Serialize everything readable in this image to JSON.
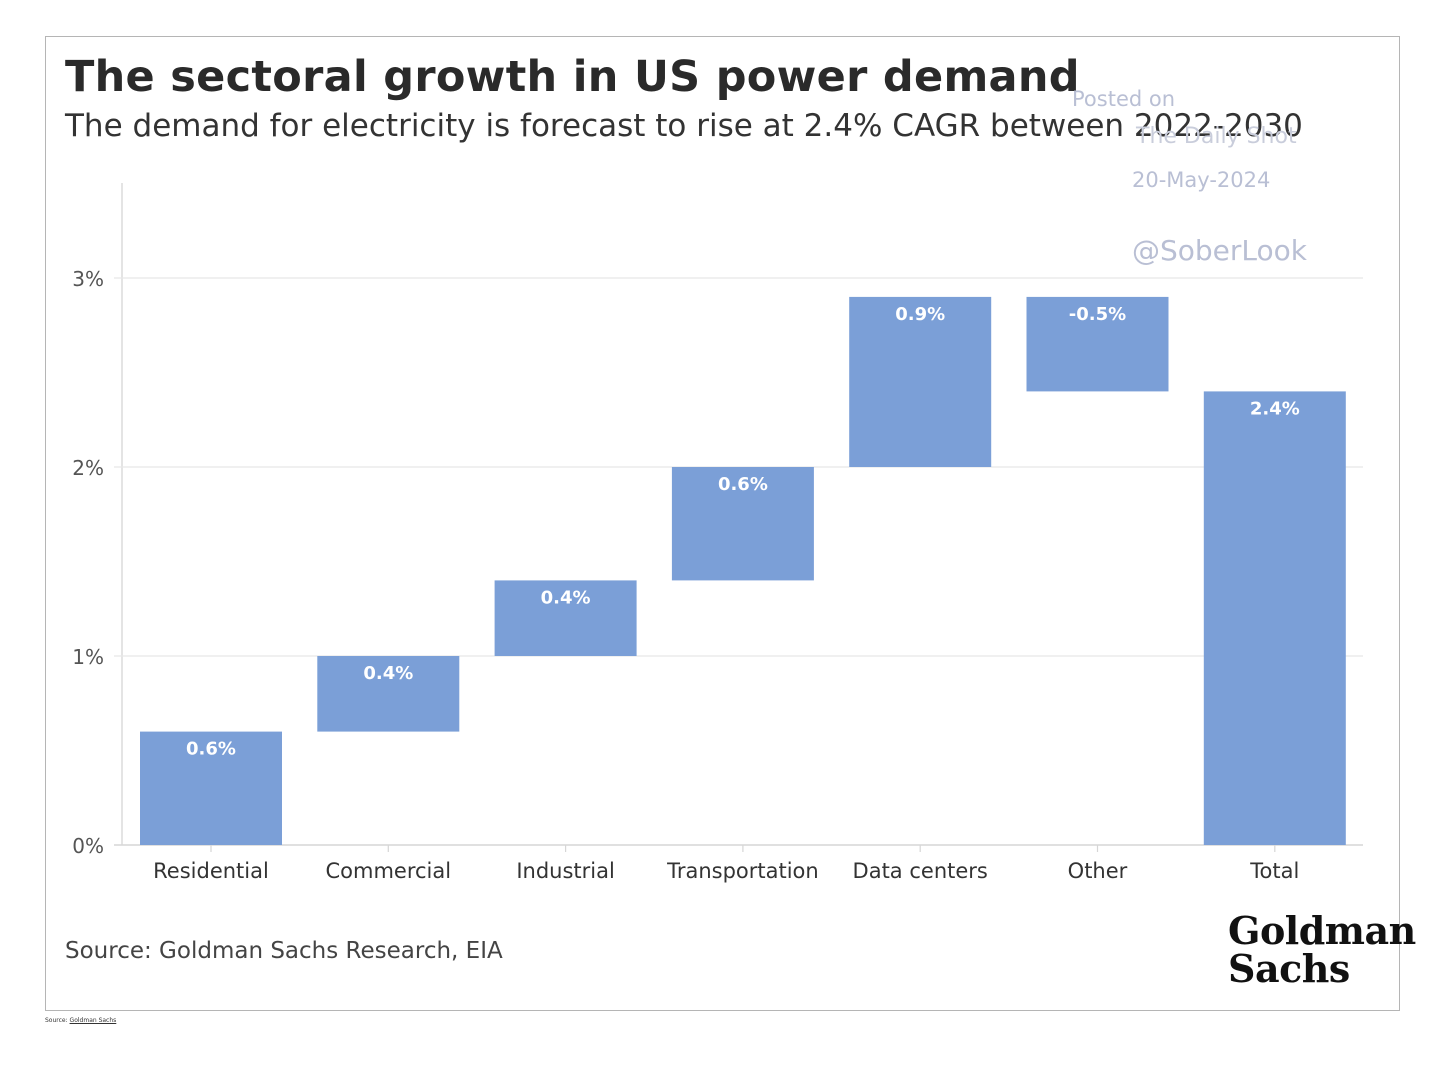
{
  "chart_data": {
    "type": "bar",
    "subtype": "waterfall",
    "title": "The sectoral growth in US power demand",
    "subtitle": "The demand for electricity is forecast to rise at 2.4% CAGR between 2022-2030",
    "categories": [
      "Residential",
      "Commercial",
      "Industrial",
      "Transportation",
      "Data centers",
      "Other",
      "Total"
    ],
    "values": [
      0.6,
      0.4,
      0.4,
      0.6,
      0.9,
      -0.5,
      2.4
    ],
    "bar_start": [
      0.0,
      0.6,
      1.0,
      1.4,
      2.0,
      2.4,
      0.0
    ],
    "bar_end": [
      0.6,
      1.0,
      1.4,
      2.0,
      2.9,
      2.9,
      2.4
    ],
    "data_labels": [
      "0.6%",
      "0.4%",
      "0.4%",
      "0.6%",
      "0.9%",
      "-0.5%",
      "2.4%"
    ],
    "yticks": [
      0,
      1,
      2,
      3
    ],
    "ytick_labels": [
      "0%",
      "1%",
      "2%",
      "3%"
    ],
    "ylim": [
      0,
      3.5
    ],
    "xlabel": "",
    "ylabel": "",
    "grid": true,
    "bar_color": "#7b9fd7",
    "label_color": "#ffffff"
  },
  "watermark": {
    "posted": "Posted on",
    "blog": "The Daily Shot",
    "date": "20-May-2024",
    "handle": "@SoberLook"
  },
  "source": "Source: Goldman Sachs Research, EIA",
  "logo": {
    "line1": "Goldman",
    "line2": "Sachs"
  },
  "footnote": {
    "prefix": "Source: ",
    "link": "Goldman Sachs"
  }
}
